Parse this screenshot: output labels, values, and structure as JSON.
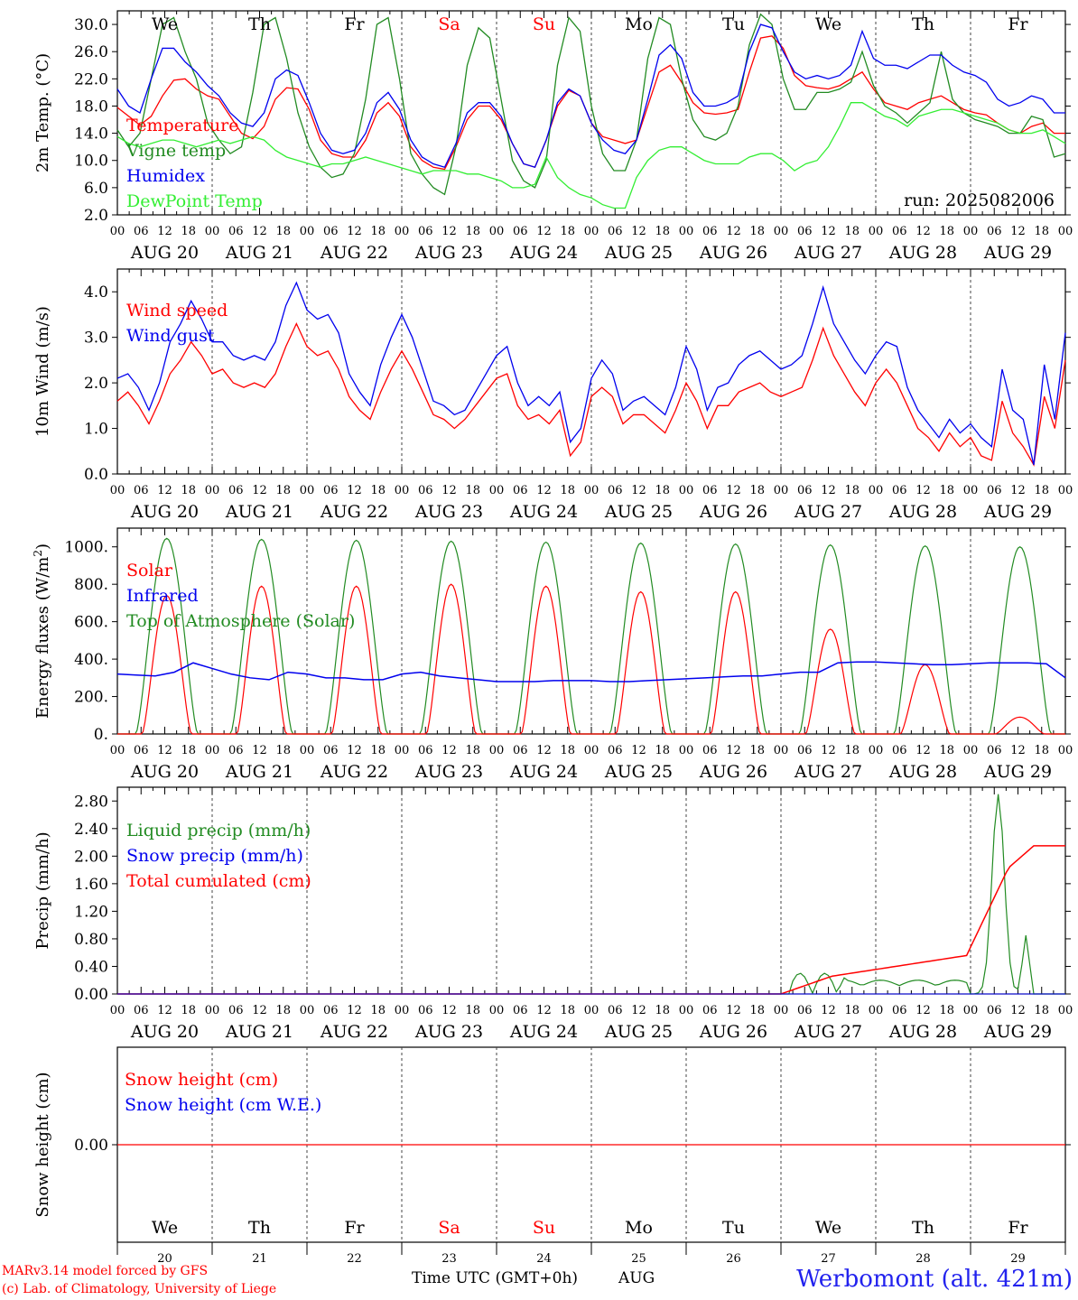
{
  "chart_data": [
    {
      "id": "temp",
      "type": "line",
      "ylabel": "2m Temp. (°C)",
      "ylim": [
        2,
        32
      ],
      "yticks": [
        "2.0",
        "6.0",
        "10.0",
        "14.0",
        "18.0",
        "22.0",
        "26.0",
        "30.0"
      ],
      "yvals": [
        2,
        6,
        10,
        14,
        18,
        22,
        26,
        30
      ],
      "run_label": "run: 2025082006",
      "series": [
        {
          "name": "Temperature",
          "color": "#ff0000",
          "values": [
            17.8,
            16.5,
            15.2,
            16.5,
            19.5,
            21.8,
            22.0,
            20.5,
            19.5,
            19.0,
            16.5,
            14.0,
            13.2,
            15.0,
            19.0,
            20.7,
            20.5,
            17.5,
            13.0,
            11.0,
            10.5,
            10.5,
            13.0,
            17.0,
            18.5,
            16.5,
            12.0,
            10.0,
            9.0,
            8.7,
            12.0,
            16.0,
            18.0,
            18.0,
            16.0,
            12.5,
            9.5,
            9.0,
            13.0,
            18.0,
            20.3,
            19.5,
            15.5,
            13.5,
            13.0,
            12.5,
            13.0,
            18.0,
            23.0,
            24.0,
            21.5,
            18.5,
            17.0,
            16.8,
            17.0,
            17.5,
            23.0,
            28.0,
            28.3,
            26.5,
            22.5,
            21.0,
            20.7,
            20.5,
            21.0,
            22.0,
            23.0,
            20.5,
            18.5,
            18.0,
            17.5,
            18.5,
            19.0,
            19.5,
            18.5,
            17.5,
            17.0,
            16.7,
            15.5,
            14.5,
            14.0,
            15.0,
            15.5,
            14.0,
            14.0
          ]
        },
        {
          "name": "Vigne temp",
          "color": "#228b22",
          "values": [
            14.5,
            12.0,
            14.0,
            22.0,
            30.0,
            31.0,
            26.0,
            22.0,
            15.5,
            13.0,
            11.0,
            12.0,
            20.0,
            30.0,
            31.0,
            25.0,
            17.0,
            12.0,
            9.0,
            7.5,
            8.0,
            11.0,
            19.0,
            30.0,
            31.0,
            22.0,
            11.0,
            8.0,
            6.0,
            5.0,
            12.0,
            24.0,
            29.5,
            28.0,
            19.0,
            10.0,
            7.0,
            6.0,
            10.0,
            24.0,
            31.0,
            29.0,
            18.0,
            11.0,
            8.5,
            8.5,
            13.0,
            25.0,
            31.0,
            30.0,
            22.0,
            16.0,
            13.5,
            13.0,
            14.0,
            18.0,
            27.0,
            31.5,
            30.0,
            22.0,
            17.5,
            17.5,
            20.0,
            20.0,
            20.5,
            21.5,
            26.0,
            21.0,
            18.0,
            17.0,
            15.5,
            17.0,
            18.5,
            26.0,
            19.0,
            17.0,
            16.0,
            15.5,
            15.0,
            14.0,
            14.0,
            16.5,
            16.0,
            10.5,
            11.0
          ]
        },
        {
          "name": "Humidex",
          "color": "#0000ee",
          "values": [
            20.5,
            18.0,
            17.0,
            22.0,
            26.5,
            26.5,
            24.5,
            23.0,
            21.0,
            19.5,
            17.0,
            15.5,
            15.0,
            17.0,
            22.0,
            23.3,
            22.5,
            18.5,
            14.0,
            11.5,
            11.0,
            11.5,
            14.0,
            18.5,
            20.0,
            17.5,
            13.0,
            10.5,
            9.5,
            9.0,
            12.5,
            17.0,
            18.5,
            18.5,
            16.5,
            12.5,
            9.5,
            9.0,
            13.0,
            18.5,
            20.5,
            19.5,
            15.5,
            13.0,
            11.5,
            11.0,
            13.0,
            19.0,
            25.5,
            27.0,
            25.0,
            20.0,
            18.0,
            18.0,
            18.5,
            19.5,
            26.0,
            30.0,
            29.5,
            26.0,
            23.0,
            22.0,
            22.5,
            22.0,
            22.5,
            24.0,
            29.0,
            25.0,
            24.0,
            24.0,
            23.5,
            24.5,
            25.5,
            25.5,
            24.0,
            23.0,
            22.5,
            21.5,
            19.0,
            18.0,
            18.5,
            19.5,
            19.0,
            17.0,
            17.0
          ]
        },
        {
          "name": "DewPoint Temp",
          "color": "#33ee33",
          "values": [
            13.5,
            12.5,
            12.0,
            12.5,
            13.0,
            13.0,
            12.5,
            12.0,
            12.5,
            13.0,
            12.5,
            13.0,
            13.5,
            13.0,
            11.5,
            10.5,
            10.0,
            9.5,
            9.0,
            9.5,
            9.5,
            10.0,
            10.5,
            10.0,
            9.5,
            9.0,
            8.5,
            8.0,
            8.5,
            8.5,
            8.5,
            8.0,
            8.0,
            7.5,
            7.0,
            6.0,
            6.0,
            6.5,
            10.5,
            7.5,
            6.0,
            5.0,
            4.5,
            3.5,
            3.0,
            3.0,
            7.5,
            10.0,
            11.5,
            12.0,
            12.0,
            11.0,
            10.0,
            9.5,
            9.5,
            9.5,
            10.5,
            11.0,
            11.0,
            10.0,
            8.5,
            9.5,
            10.0,
            12.0,
            15.0,
            18.5,
            18.5,
            17.5,
            16.5,
            16.0,
            15.0,
            16.5,
            17.0,
            17.5,
            17.5,
            17.0,
            16.5,
            16.0,
            15.5,
            14.5,
            14.0,
            14.0,
            14.5,
            13.5,
            12.5
          ]
        }
      ]
    },
    {
      "id": "wind",
      "type": "line",
      "ylabel": "10m Wind (m/s)",
      "ylim": [
        0,
        4.5
      ],
      "yticks": [
        "0.0",
        "1.0",
        "2.0",
        "3.0",
        "4.0"
      ],
      "yvals": [
        0,
        1,
        2,
        3,
        4
      ],
      "series": [
        {
          "name": "Wind speed",
          "color": "#ff0000",
          "values": [
            1.6,
            1.8,
            1.5,
            1.1,
            1.6,
            2.2,
            2.5,
            2.9,
            2.6,
            2.2,
            2.3,
            2.0,
            1.9,
            2.0,
            1.9,
            2.2,
            2.8,
            3.3,
            2.8,
            2.6,
            2.7,
            2.3,
            1.7,
            1.4,
            1.2,
            1.8,
            2.3,
            2.7,
            2.3,
            1.8,
            1.3,
            1.2,
            1.0,
            1.2,
            1.5,
            1.8,
            2.1,
            2.2,
            1.5,
            1.2,
            1.3,
            1.1,
            1.4,
            0.4,
            0.7,
            1.7,
            1.9,
            1.7,
            1.1,
            1.3,
            1.3,
            1.1,
            0.9,
            1.4,
            2.0,
            1.6,
            1.0,
            1.5,
            1.5,
            1.8,
            1.9,
            2.0,
            1.8,
            1.7,
            1.8,
            1.9,
            2.5,
            3.2,
            2.6,
            2.2,
            1.8,
            1.5,
            2.0,
            2.3,
            2.0,
            1.5,
            1.0,
            0.8,
            0.5,
            0.9,
            0.6,
            0.8,
            0.4,
            0.3,
            1.6,
            0.9,
            0.6,
            0.2,
            1.7,
            1.0,
            2.5
          ]
        },
        {
          "name": "Wind gust",
          "color": "#0000ee",
          "values": [
            2.1,
            2.2,
            1.9,
            1.4,
            2.0,
            2.9,
            3.3,
            3.8,
            3.4,
            2.9,
            2.9,
            2.6,
            2.5,
            2.6,
            2.5,
            2.9,
            3.7,
            4.2,
            3.6,
            3.4,
            3.5,
            3.1,
            2.2,
            1.8,
            1.5,
            2.4,
            3.0,
            3.5,
            3.0,
            2.3,
            1.6,
            1.5,
            1.3,
            1.4,
            1.8,
            2.2,
            2.6,
            2.8,
            2.0,
            1.5,
            1.7,
            1.5,
            1.8,
            0.7,
            1.0,
            2.1,
            2.5,
            2.2,
            1.4,
            1.6,
            1.7,
            1.5,
            1.3,
            1.9,
            2.8,
            2.3,
            1.4,
            1.9,
            2.0,
            2.4,
            2.6,
            2.7,
            2.5,
            2.3,
            2.4,
            2.6,
            3.3,
            4.1,
            3.3,
            2.9,
            2.5,
            2.2,
            2.6,
            2.9,
            2.8,
            1.9,
            1.4,
            1.1,
            0.8,
            1.2,
            0.9,
            1.1,
            0.8,
            0.6,
            2.3,
            1.4,
            1.2,
            0.2,
            2.4,
            1.2,
            3.1
          ]
        }
      ]
    },
    {
      "id": "energy",
      "type": "line",
      "ylabel": "Energy fluxes (W/m2)",
      "ylim": [
        0,
        1100
      ],
      "yticks": [
        "0.",
        "200.",
        "400.",
        "600.",
        "800.",
        "1000."
      ],
      "yvals": [
        0,
        200,
        400,
        600,
        800,
        1000
      ],
      "series": [
        {
          "name": "Solar",
          "color": "#ff0000",
          "day_peaks": [
            740,
            790,
            790,
            800,
            790,
            760,
            760,
            560,
            370,
            90
          ]
        },
        {
          "name": "Infrared",
          "color": "#0000ee",
          "values": [
            320,
            315,
            310,
            330,
            380,
            350,
            320,
            300,
            290,
            330,
            320,
            300,
            300,
            290,
            290,
            320,
            330,
            310,
            300,
            290,
            280,
            280,
            280,
            285,
            285,
            285,
            280,
            280,
            285,
            290,
            295,
            300,
            305,
            310,
            310,
            320,
            330,
            330,
            380,
            385,
            385,
            380,
            375,
            370,
            370,
            375,
            380,
            380,
            380,
            375,
            300
          ]
        },
        {
          "name": "Top of Atmosphere (Solar)",
          "color": "#228b22",
          "day_peaks": [
            1045,
            1040,
            1035,
            1030,
            1025,
            1020,
            1015,
            1010,
            1005,
            1000
          ]
        }
      ]
    },
    {
      "id": "precip",
      "type": "line",
      "ylabel": "Precip (mm/h)",
      "ylim": [
        0,
        3.0
      ],
      "yticks": [
        "0.00",
        "0.40",
        "0.80",
        "1.20",
        "1.60",
        "2.00",
        "2.40",
        "2.80"
      ],
      "yvals": [
        0,
        0.4,
        0.8,
        1.2,
        1.6,
        2.0,
        2.4,
        2.8
      ],
      "series": [
        {
          "name": "Liquid precip (mm/h)",
          "color": "#228b22"
        },
        {
          "name": "Snow precip (mm/h)",
          "color": "#0000ee"
        },
        {
          "name": "Total cumulated (cm)",
          "color": "#ff0000"
        }
      ]
    },
    {
      "id": "snow",
      "type": "line",
      "ylabel": "Snow height (cm)",
      "yticks": [
        "0.00"
      ],
      "series": [
        {
          "name": "Snow height (cm)",
          "color": "#ff0000"
        },
        {
          "name": "Snow height (cm W.E.)",
          "color": "#0000ee"
        }
      ]
    }
  ],
  "x_axis": {
    "hour_ticks": [
      "00",
      "06",
      "12",
      "18"
    ],
    "day_labels": [
      "AUG 20",
      "AUG 21",
      "AUG 22",
      "AUG 23",
      "AUG 24",
      "AUG 25",
      "AUG 26",
      "AUG 27",
      "AUG 28",
      "AUG 29"
    ],
    "weekdays": [
      "We",
      "Th",
      "Fr",
      "Sa",
      "Su",
      "Mo",
      "Tu",
      "We",
      "Th",
      "Fr"
    ],
    "weekend_color": "#ff0000",
    "day_numbers": [
      "20",
      "21",
      "22",
      "23",
      "24",
      "25",
      "26",
      "27",
      "28",
      "29"
    ]
  },
  "footer": {
    "line1": "MARv3.14 model forced by GFS",
    "line2": "(c) Lab. of Climatology, University of Liege",
    "time_label": "Time UTC (GMT+0h)",
    "month": "AUG",
    "station": "Werbomont (alt. 421m)"
  }
}
